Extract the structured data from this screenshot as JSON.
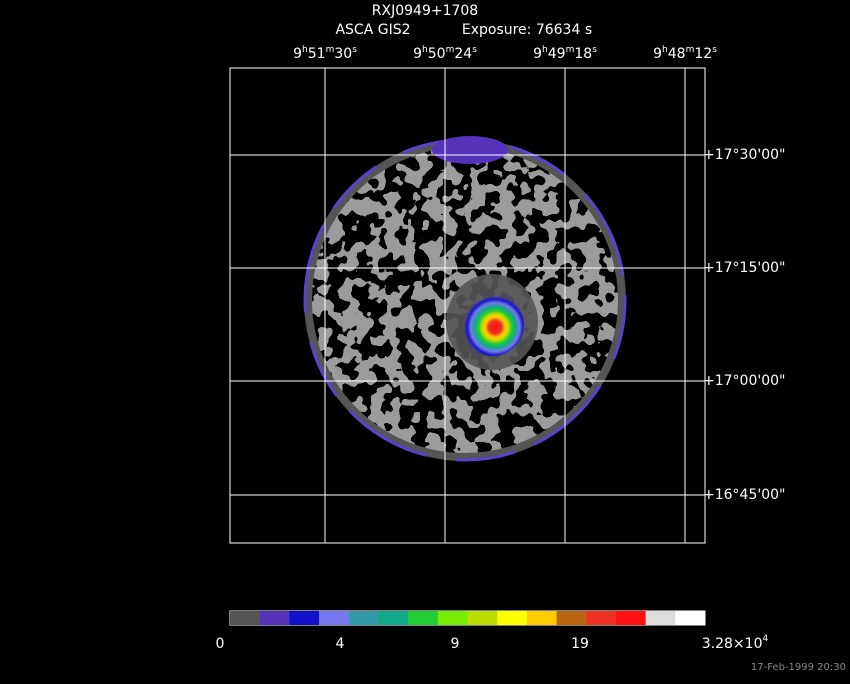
{
  "header": {
    "title": "RXJ0949+1708",
    "instrument": "ASCA GIS2",
    "exposure": "Exposure: 76634 s"
  },
  "ra_labels": [
    [
      "9",
      "h",
      "51",
      "m",
      "30",
      "s"
    ],
    [
      "9",
      "h",
      "50",
      "m",
      "24",
      "s"
    ],
    [
      "9",
      "h",
      "49",
      "m",
      "18",
      "s"
    ],
    [
      "9",
      "h",
      "48",
      "m",
      "12",
      "s"
    ]
  ],
  "dec_labels": [
    "+17°30'00\"",
    "+17°15'00\"",
    "+17°00'00\"",
    "+16°45'00\""
  ],
  "colorbar": {
    "colors": [
      "#555555",
      "#5533bb",
      "#1111cc",
      "#7777ee",
      "#3399aa",
      "#11aa88",
      "#22cc33",
      "#77ee00",
      "#bbdd00",
      "#ffff00",
      "#ffcc00",
      "#bb6611",
      "#ee3322",
      "#ff1111",
      "#dddddd",
      "#ffffff"
    ],
    "tick_labels": [
      "0",
      "4",
      "9",
      "19"
    ],
    "max_label": [
      "3.28×10",
      "4"
    ]
  },
  "timestamp": "17-Feb-1999 20:30"
}
